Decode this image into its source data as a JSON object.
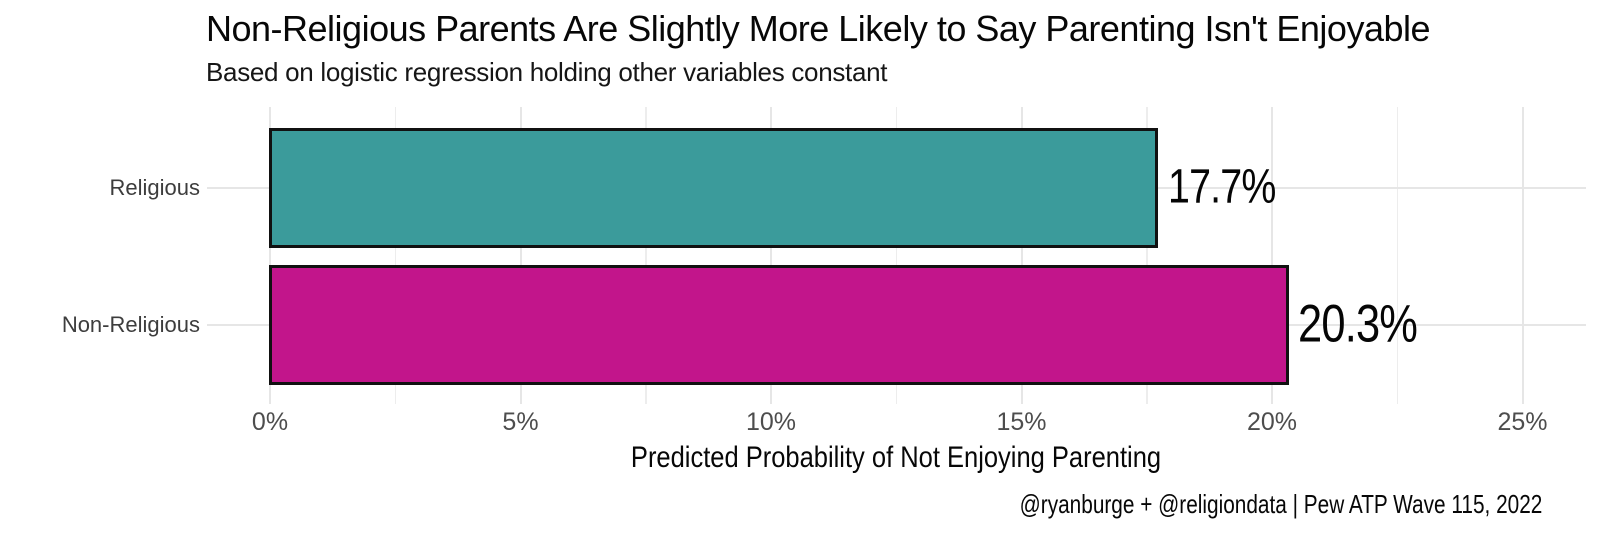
{
  "chart_data": {
    "type": "bar",
    "orientation": "horizontal",
    "title": "Non-Religious Parents Are Slightly More Likely to Say Parenting Isn't Enjoyable",
    "subtitle": "Based on logistic regression holding other variables constant",
    "xlabel": "Predicted Probability of Not Enjoying Parenting",
    "caption": "@ryanburge + @religiondata | Pew ATP Wave 115, 2022",
    "categories": [
      "Religious",
      "Non-Religious"
    ],
    "values": [
      17.7,
      20.3
    ],
    "value_labels": [
      "17.7%",
      "20.3%"
    ],
    "bar_colors": [
      "#3b9b9b",
      "#c2158b"
    ],
    "bar_border_color": "#111111",
    "xlim": [
      0,
      25
    ],
    "x_tick_values": [
      0,
      5,
      10,
      15,
      20,
      25
    ],
    "x_tick_labels": [
      "0%",
      "5%",
      "10%",
      "15%",
      "20%",
      "25%"
    ],
    "x_minor_tick_values": [
      2.5,
      7.5,
      12.5,
      17.5,
      22.5
    ],
    "grid": "vertical major+minor, horizontal at category centers",
    "legend": "none",
    "background_color": "#ffffff",
    "grid_color": "#e6e6e6"
  }
}
